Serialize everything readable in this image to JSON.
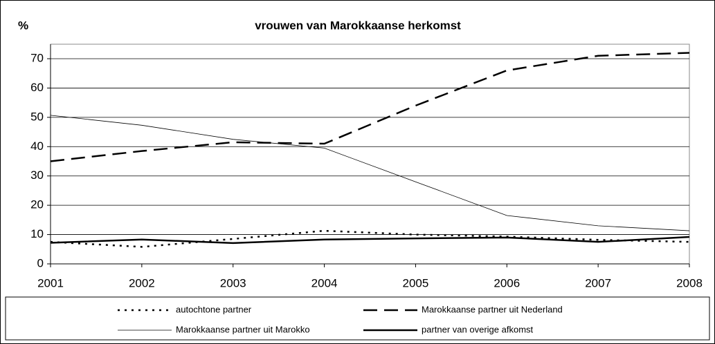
{
  "chart_data": {
    "type": "line",
    "title": "vrouwen van Marokkaanse herkomst",
    "y_label": "%",
    "x": [
      2001,
      2002,
      2003,
      2004,
      2005,
      2006,
      2007,
      2008
    ],
    "xlim": [
      2001,
      2008
    ],
    "xticks": [
      2001,
      2002,
      2003,
      2004,
      2005,
      2006,
      2007,
      2008
    ],
    "ylim": [
      0,
      70
    ],
    "yticks": [
      0,
      10,
      20,
      30,
      40,
      50,
      60,
      70
    ],
    "grid": true,
    "series": [
      {
        "name": "autochtone partner",
        "color": "#000000",
        "style": "dotted",
        "values": [
          7.5,
          5.8,
          8.5,
          11.3,
          10,
          9.3,
          8.2,
          7.5
        ]
      },
      {
        "name": "Marokkaanse partner uit Nederland",
        "color": "#000000",
        "style": "dashed",
        "values": [
          35,
          38.5,
          41.5,
          41,
          54,
          66,
          71,
          72
        ]
      },
      {
        "name": "Marokkaanse partner uit Marokko",
        "color": "#000000",
        "style": "thin",
        "values": [
          50.7,
          47.3,
          42.5,
          39.5,
          28,
          16.5,
          13,
          11.3
        ]
      },
      {
        "name": "partner van overige afkomst",
        "color": "#000000",
        "style": "thick",
        "values": [
          7.2,
          8.3,
          7.1,
          8.3,
          8.7,
          9.0,
          7.5,
          9.2
        ]
      }
    ]
  }
}
